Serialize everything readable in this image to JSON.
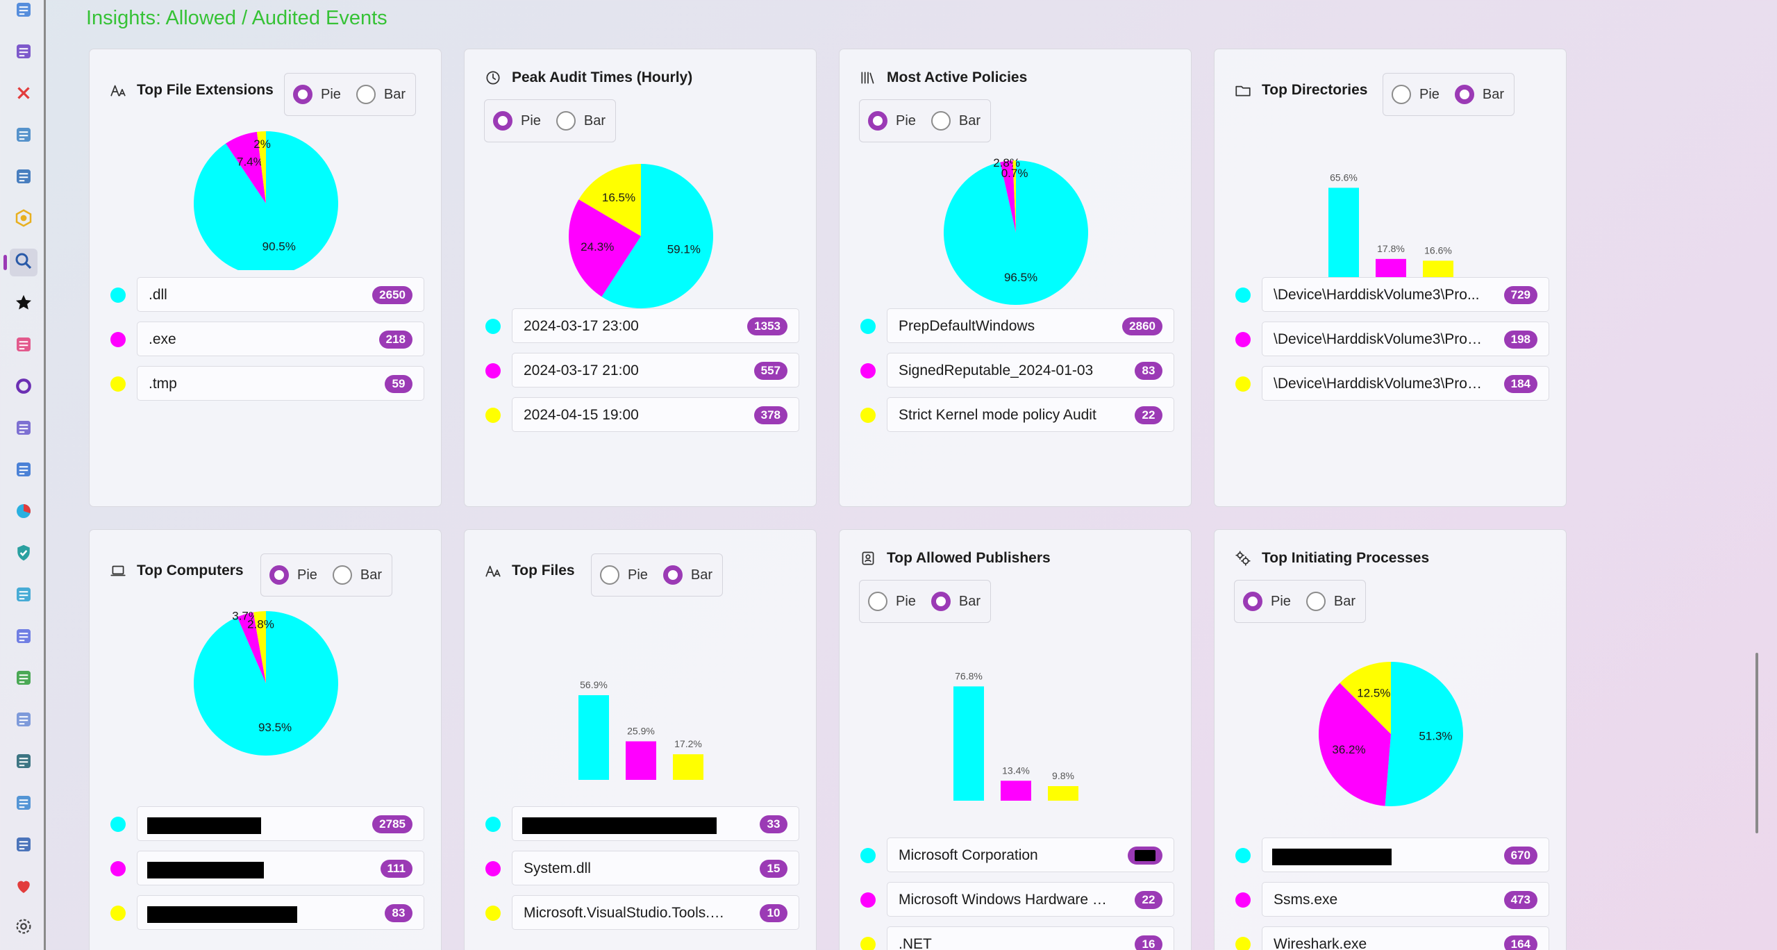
{
  "page_title": "Insights: Allowed / Audited Events",
  "colors": {
    "c1": "#00FFFF",
    "c2": "#FF00FF",
    "c3": "#FFFF00",
    "accent": "#9B3AB5"
  },
  "toggle": {
    "pie": "Pie",
    "bar": "Bar"
  },
  "rail_icons": [
    "grid-icon",
    "film-icon",
    "close-x-icon",
    "browser-icon",
    "checklist-icon",
    "hexagon-icon",
    "search-icon",
    "star-icon",
    "heart-book-icon",
    "ring-icon",
    "rocket-icon",
    "layers-icon",
    "pie-chart-icon",
    "shield-check-icon",
    "gear-puzzle-icon",
    "atom-icon",
    "settings-cog-icon",
    "document-scan-icon",
    "github-icon",
    "notebook-icon",
    "flow-icon",
    "heart-icon",
    "settings-icon"
  ],
  "cards": [
    {
      "id": "top-file-extensions",
      "title": "Top File Extensions",
      "icon": "font-size-icon",
      "mode": "pie",
      "chart_data": {
        "type": "pie",
        "title": "Top File Extensions",
        "categories": [
          ".dll",
          ".exe",
          ".tmp"
        ],
        "values": [
          90.5,
          7.4,
          2
        ],
        "value_labels": [
          "90.5%",
          "7.4%",
          "2%"
        ]
      },
      "items": [
        {
          "label": ".dll",
          "count": "2650"
        },
        {
          "label": ".exe",
          "count": "218"
        },
        {
          "label": ".tmp",
          "count": "59"
        }
      ]
    },
    {
      "id": "peak-audit-times",
      "title": "Peak Audit Times (Hourly)",
      "icon": "clock-icon",
      "mode": "pie",
      "chart_data": {
        "type": "pie",
        "title": "Peak Audit Times (Hourly)",
        "categories": [
          "2024-03-17 23:00",
          "2024-03-17 21:00",
          "2024-04-15 19:00"
        ],
        "values": [
          59.1,
          24.3,
          16.5
        ],
        "value_labels": [
          "59.1%",
          "24.3%",
          "16.5%"
        ]
      },
      "items": [
        {
          "label": "2024-03-17 23:00",
          "count": "1353"
        },
        {
          "label": "2024-03-17 21:00",
          "count": "557"
        },
        {
          "label": "2024-04-15 19:00",
          "count": "378"
        }
      ]
    },
    {
      "id": "most-active-policies",
      "title": "Most Active Policies",
      "icon": "library-icon",
      "mode": "pie",
      "chart_data": {
        "type": "pie",
        "title": "Most Active Policies",
        "categories": [
          "PrepDefaultWindows",
          "SignedReputable_2024-01-03",
          "Strict Kernel mode policy Audit"
        ],
        "values": [
          96.5,
          2.8,
          0.7
        ],
        "value_labels": [
          "96.5%",
          "2.8%",
          "0.7%"
        ]
      },
      "items": [
        {
          "label": "PrepDefaultWindows",
          "count": "2860"
        },
        {
          "label": "SignedReputable_2024-01-03",
          "count": "83"
        },
        {
          "label": "Strict Kernel mode policy Audit",
          "count": "22"
        }
      ]
    },
    {
      "id": "top-directories",
      "title": "Top Directories",
      "icon": "folder-icon",
      "mode": "bar",
      "chart_data": {
        "type": "bar",
        "title": "Top Directories",
        "categories": [
          "\\Device\\HarddiskVolume3\\Pro...",
          "\\Device\\HarddiskVolume3\\Prog...",
          "\\Device\\HarddiskVolume3\\Prog..."
        ],
        "values": [
          65.6,
          17.8,
          16.6
        ],
        "value_labels": [
          "65.6%",
          "17.8%",
          "16.6%"
        ]
      },
      "items": [
        {
          "label": "\\Device\\HarddiskVolume3\\Pro...",
          "count": "729"
        },
        {
          "label": "\\Device\\HarddiskVolume3\\Prog...",
          "count": "198"
        },
        {
          "label": "\\Device\\HarddiskVolume3\\Prog...",
          "count": "184"
        }
      ]
    },
    {
      "id": "top-computers",
      "title": "Top Computers",
      "icon": "laptop-icon",
      "mode": "pie",
      "chart_data": {
        "type": "pie",
        "title": "Top Computers",
        "categories": [
          "[redacted]",
          "[redacted]",
          "[redacted]"
        ],
        "values": [
          93.5,
          3.7,
          2.8
        ],
        "value_labels": [
          "93.5%",
          "3.7%",
          "2.8%"
        ]
      },
      "items": [
        {
          "label": "",
          "count": "2785",
          "redacted": true
        },
        {
          "label": "",
          "count": "111",
          "redacted": true
        },
        {
          "label": "",
          "count": "83",
          "redacted": true
        }
      ]
    },
    {
      "id": "top-files",
      "title": "Top Files",
      "icon": "font-size-icon",
      "mode": "bar",
      "chart_data": {
        "type": "bar",
        "title": "Top Files",
        "categories": [
          "[redacted]",
          "System.dll",
          "Microsoft.VisualStudio.Tools.App..."
        ],
        "values": [
          56.9,
          25.9,
          17.2
        ],
        "value_labels": [
          "56.9%",
          "25.9%",
          "17.2%"
        ]
      },
      "items": [
        {
          "label": "",
          "count": "33",
          "redacted": true
        },
        {
          "label": "System.dll",
          "count": "15"
        },
        {
          "label": "Microsoft.VisualStudio.Tools.App...",
          "count": "10"
        }
      ]
    },
    {
      "id": "top-allowed-publishers",
      "title": "Top Allowed Publishers",
      "icon": "badge-icon",
      "mode": "bar",
      "chart_data": {
        "type": "bar",
        "title": "Top Allowed Publishers",
        "categories": [
          "Microsoft Corporation",
          "Microsoft Windows Hardware C...",
          ".NET"
        ],
        "values": [
          76.8,
          13.4,
          9.8
        ],
        "value_labels": [
          "76.8%",
          "13.4%",
          "9.8%"
        ]
      },
      "items": [
        {
          "label": "Microsoft Corporation",
          "count": "",
          "redacted_count": true
        },
        {
          "label": "Microsoft Windows Hardware C...",
          "count": "22"
        },
        {
          "label": ".NET",
          "count": "16"
        }
      ]
    },
    {
      "id": "top-initiating-processes",
      "title": "Top Initiating Processes",
      "icon": "gears-icon",
      "mode": "pie",
      "chart_data": {
        "type": "pie",
        "title": "Top Initiating Processes",
        "categories": [
          "[redacted]",
          "Ssms.exe",
          "Wireshark.exe"
        ],
        "values": [
          51.3,
          36.2,
          12.5
        ],
        "value_labels": [
          "51.3%",
          "36.2%",
          "12.5%"
        ]
      },
      "items": [
        {
          "label": "",
          "count": "670",
          "redacted": true
        },
        {
          "label": "Ssms.exe",
          "count": "473"
        },
        {
          "label": "Wireshark.exe",
          "count": "164"
        }
      ]
    }
  ]
}
